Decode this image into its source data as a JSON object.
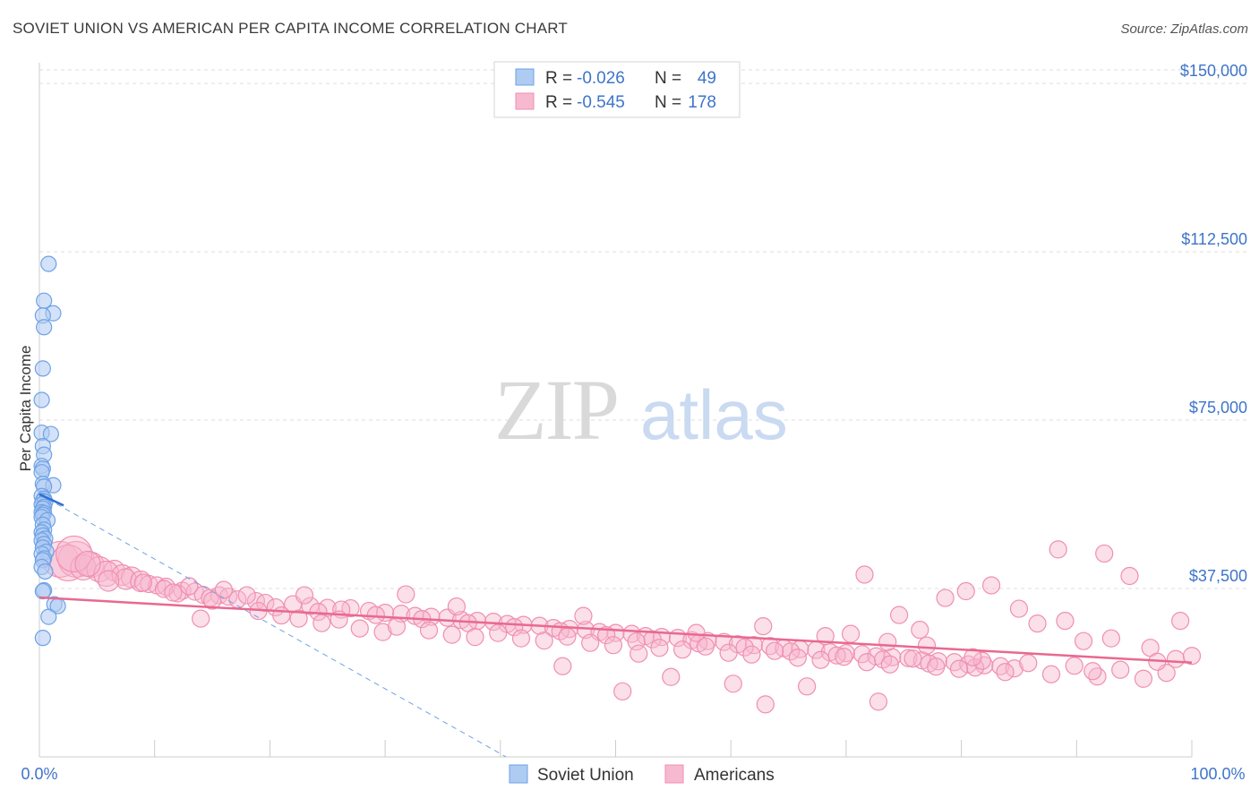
{
  "title": "SOVIET UNION VS AMERICAN PER CAPITA INCOME CORRELATION CHART",
  "source": "Source: ZipAtlas.com",
  "watermark": {
    "zip": "ZIP",
    "atlas": "atlas"
  },
  "colors": {
    "soviet_fill": "#aecbf2",
    "soviet_stroke": "#6ea2e6",
    "soviet_line": "#2f6fd6",
    "american_fill": "#f7b9cf",
    "american_stroke": "#f08fb0",
    "american_line": "#e8698f",
    "tick_text": "#3f74c9",
    "grid": "#dddddd"
  },
  "legend": {
    "rows": [
      {
        "r_label": "R =",
        "r_value": "-0.026",
        "n_label": "N =",
        "n_value": "49"
      },
      {
        "r_label": "R =",
        "r_value": "-0.545",
        "n_label": "N =",
        "n_value": "178"
      }
    ]
  },
  "chart_data": {
    "type": "scatter",
    "ylabel": "Per Capita Income",
    "xlim": [
      0,
      100
    ],
    "ylim": [
      0,
      157000
    ],
    "x_tick_labels": [
      "0.0%",
      "100.0%"
    ],
    "y_ticks": [
      {
        "value": 37500,
        "label": "$37,500"
      },
      {
        "value": 75000,
        "label": "$75,000"
      },
      {
        "value": 112500,
        "label": "$112,500"
      },
      {
        "value": 150000,
        "label": "$150,000"
      }
    ],
    "grid": true,
    "legend_position": "top-center",
    "series": [
      {
        "name": "Soviet Union",
        "r": -0.026,
        "n": 49,
        "trend": {
          "x0": 0.0,
          "y0": 58500,
          "x1": 2.1,
          "y1": 56000
        },
        "extended_trend": {
          "x0": 0.0,
          "y0": 58500,
          "x1": 40.5,
          "y1": 0
        },
        "points": [
          [
            0.8,
            109800
          ],
          [
            0.4,
            101600
          ],
          [
            1.2,
            98800
          ],
          [
            0.3,
            98300
          ],
          [
            0.4,
            95700
          ],
          [
            0.3,
            86500
          ],
          [
            0.2,
            79500
          ],
          [
            0.2,
            72200
          ],
          [
            1.0,
            71900
          ],
          [
            0.3,
            69200
          ],
          [
            0.4,
            67300
          ],
          [
            0.2,
            64800
          ],
          [
            0.3,
            64200
          ],
          [
            0.2,
            63400
          ],
          [
            0.3,
            60800
          ],
          [
            1.2,
            60500
          ],
          [
            0.4,
            60200
          ],
          [
            0.2,
            58100
          ],
          [
            0.4,
            57500
          ],
          [
            0.3,
            57000
          ],
          [
            0.5,
            56800
          ],
          [
            0.2,
            56200
          ],
          [
            0.4,
            55700
          ],
          [
            0.3,
            55300
          ],
          [
            0.2,
            54500
          ],
          [
            0.4,
            54300
          ],
          [
            0.3,
            53900
          ],
          [
            0.2,
            53400
          ],
          [
            0.7,
            52700
          ],
          [
            0.3,
            51700
          ],
          [
            0.4,
            50600
          ],
          [
            0.2,
            50000
          ],
          [
            0.3,
            49300
          ],
          [
            0.5,
            48600
          ],
          [
            0.2,
            48200
          ],
          [
            0.4,
            47400
          ],
          [
            0.3,
            46600
          ],
          [
            0.6,
            45700
          ],
          [
            0.2,
            45200
          ],
          [
            0.4,
            44200
          ],
          [
            0.3,
            43800
          ],
          [
            0.2,
            42300
          ],
          [
            0.5,
            41300
          ],
          [
            0.4,
            37100
          ],
          [
            0.3,
            36900
          ],
          [
            1.3,
            34000
          ],
          [
            1.6,
            33600
          ],
          [
            0.8,
            31200
          ],
          [
            0.3,
            26500
          ]
        ]
      },
      {
        "name": "Americans",
        "r": -0.545,
        "n": 178,
        "trend": {
          "x0": 0.0,
          "y0": 35500,
          "x1": 100.0,
          "y1": 21000
        },
        "points": [
          [
            1.8,
            44000
          ],
          [
            3.2,
            44000
          ],
          [
            2.5,
            43200
          ],
          [
            4.5,
            42800
          ],
          [
            3.8,
            42200
          ],
          [
            5.2,
            41800
          ],
          [
            6.5,
            41500
          ],
          [
            5.8,
            40800
          ],
          [
            7.2,
            40500
          ],
          [
            8.0,
            40000
          ],
          [
            7.5,
            39600
          ],
          [
            8.8,
            39100
          ],
          [
            9.5,
            38500
          ],
          [
            10.2,
            38200
          ],
          [
            11.0,
            37900
          ],
          [
            10.8,
            37400
          ],
          [
            12.4,
            37000
          ],
          [
            13.5,
            36800
          ],
          [
            12.0,
            36400
          ],
          [
            14.2,
            36100
          ],
          [
            15.6,
            36000
          ],
          [
            16.4,
            35700
          ],
          [
            14.8,
            35400
          ],
          [
            17.2,
            35100
          ],
          [
            18.8,
            34700
          ],
          [
            19.6,
            34300
          ],
          [
            22.0,
            34000
          ],
          [
            23.5,
            33600
          ],
          [
            20.5,
            33300
          ],
          [
            25.0,
            33200
          ],
          [
            27.0,
            33100
          ],
          [
            26.2,
            32800
          ],
          [
            28.6,
            32500
          ],
          [
            24.2,
            32300
          ],
          [
            30.0,
            32100
          ],
          [
            31.4,
            31900
          ],
          [
            29.2,
            31600
          ],
          [
            32.6,
            31400
          ],
          [
            34.0,
            31200
          ],
          [
            35.4,
            31000
          ],
          [
            33.2,
            30700
          ],
          [
            36.6,
            30500
          ],
          [
            38.0,
            30300
          ],
          [
            39.4,
            30100
          ],
          [
            37.2,
            29800
          ],
          [
            40.6,
            29600
          ],
          [
            42.0,
            29400
          ],
          [
            43.4,
            29200
          ],
          [
            41.2,
            28900
          ],
          [
            44.6,
            28700
          ],
          [
            46.0,
            28500
          ],
          [
            47.4,
            28300
          ],
          [
            45.2,
            28000
          ],
          [
            48.6,
            27800
          ],
          [
            50.0,
            27600
          ],
          [
            51.4,
            27400
          ],
          [
            49.2,
            27100
          ],
          [
            52.6,
            26900
          ],
          [
            54.0,
            26700
          ],
          [
            55.4,
            26500
          ],
          [
            53.2,
            26200
          ],
          [
            56.6,
            26000
          ],
          [
            58.0,
            25800
          ],
          [
            59.4,
            25600
          ],
          [
            57.2,
            25300
          ],
          [
            60.6,
            25100
          ],
          [
            62.0,
            24900
          ],
          [
            63.4,
            24700
          ],
          [
            61.2,
            24400
          ],
          [
            64.6,
            24200
          ],
          [
            66.0,
            24000
          ],
          [
            67.4,
            23800
          ],
          [
            65.2,
            23500
          ],
          [
            68.6,
            23300
          ],
          [
            70.0,
            23100
          ],
          [
            71.4,
            22900
          ],
          [
            69.2,
            22600
          ],
          [
            72.6,
            22400
          ],
          [
            74.0,
            22200
          ],
          [
            75.4,
            22000
          ],
          [
            73.2,
            21700
          ],
          [
            76.6,
            21500
          ],
          [
            78.0,
            21300
          ],
          [
            79.4,
            21100
          ],
          [
            77.2,
            20800
          ],
          [
            80.6,
            20600
          ],
          [
            82.0,
            20400
          ],
          [
            83.4,
            20200
          ],
          [
            81.2,
            19900
          ],
          [
            84.6,
            19700
          ],
          [
            3.0,
            45200
          ],
          [
            4.2,
            43000
          ],
          [
            6.0,
            39200
          ],
          [
            9.0,
            38800
          ],
          [
            11.6,
            36600
          ],
          [
            13.0,
            38000
          ],
          [
            15.0,
            34800
          ],
          [
            16.0,
            37200
          ],
          [
            18.0,
            36000
          ],
          [
            19.0,
            32500
          ],
          [
            21.0,
            31500
          ],
          [
            22.5,
            30800
          ],
          [
            24.5,
            29800
          ],
          [
            26.0,
            30600
          ],
          [
            27.8,
            28600
          ],
          [
            29.8,
            27800
          ],
          [
            31.0,
            29000
          ],
          [
            33.8,
            28200
          ],
          [
            35.8,
            27200
          ],
          [
            37.8,
            26700
          ],
          [
            39.8,
            27600
          ],
          [
            41.8,
            26400
          ],
          [
            43.8,
            25900
          ],
          [
            45.8,
            26800
          ],
          [
            47.8,
            25400
          ],
          [
            49.8,
            24900
          ],
          [
            51.8,
            25700
          ],
          [
            53.8,
            24300
          ],
          [
            55.8,
            23900
          ],
          [
            57.8,
            24600
          ],
          [
            59.8,
            23200
          ],
          [
            61.8,
            22800
          ],
          [
            63.8,
            23600
          ],
          [
            65.8,
            22100
          ],
          [
            67.8,
            21600
          ],
          [
            69.8,
            22300
          ],
          [
            71.8,
            21100
          ],
          [
            73.8,
            20600
          ],
          [
            75.8,
            21900
          ],
          [
            77.8,
            20100
          ],
          [
            79.8,
            19600
          ],
          [
            81.8,
            21400
          ],
          [
            83.8,
            18900
          ],
          [
            85.8,
            20900
          ],
          [
            87.8,
            18400
          ],
          [
            89.8,
            20300
          ],
          [
            91.8,
            17900
          ],
          [
            93.8,
            19400
          ],
          [
            95.8,
            17400
          ],
          [
            97.8,
            18700
          ],
          [
            14.0,
            30800
          ],
          [
            23.0,
            36000
          ],
          [
            31.8,
            36200
          ],
          [
            36.2,
            33500
          ],
          [
            47.2,
            31400
          ],
          [
            52.0,
            23000
          ],
          [
            57.0,
            27600
          ],
          [
            62.8,
            29100
          ],
          [
            68.2,
            26900
          ],
          [
            74.6,
            31600
          ],
          [
            78.6,
            35400
          ],
          [
            82.6,
            38200
          ],
          [
            86.6,
            29700
          ],
          [
            90.6,
            25800
          ],
          [
            94.6,
            40300
          ],
          [
            98.6,
            21800
          ],
          [
            71.6,
            40600
          ],
          [
            76.4,
            28300
          ],
          [
            80.4,
            36900
          ],
          [
            88.4,
            46200
          ],
          [
            92.4,
            45300
          ],
          [
            96.4,
            24300
          ],
          [
            100.0,
            22500
          ],
          [
            45.4,
            20200
          ],
          [
            50.6,
            14600
          ],
          [
            54.8,
            17800
          ],
          [
            60.2,
            16300
          ],
          [
            63.0,
            11700
          ],
          [
            70.4,
            27400
          ],
          [
            73.6,
            25600
          ],
          [
            77.0,
            24800
          ],
          [
            81.0,
            22200
          ],
          [
            85.0,
            33000
          ],
          [
            89.0,
            30300
          ],
          [
            93.0,
            26400
          ],
          [
            97.0,
            21200
          ],
          [
            99.0,
            30300
          ],
          [
            66.6,
            15700
          ],
          [
            72.8,
            12300
          ],
          [
            91.4,
            19100
          ]
        ]
      }
    ]
  }
}
